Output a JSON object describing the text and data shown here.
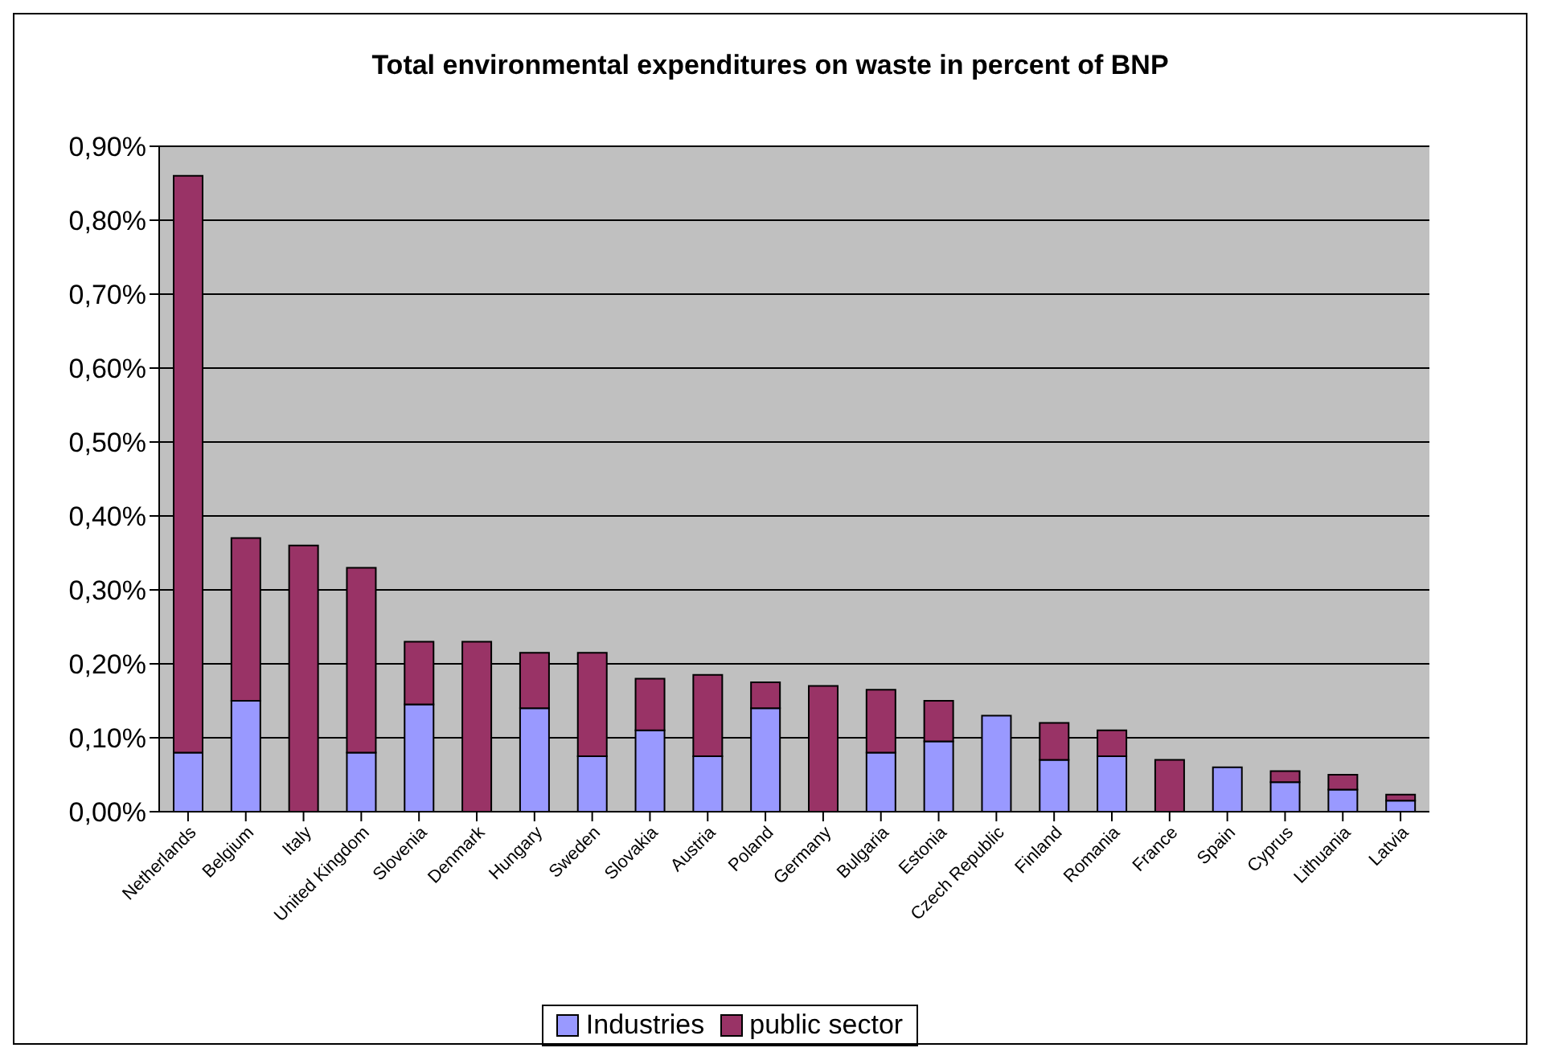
{
  "chart_data": {
    "type": "bar",
    "title": "Total environmental expenditures on waste in percent of BNP",
    "stacked": true,
    "grid": "y",
    "legend": "bottom",
    "categories": [
      "Netherlands",
      "Belgium",
      "Italy",
      "United Kingdom",
      "Slovenia",
      "Denmark",
      "Hungary",
      "Sweden",
      "Slovakia",
      "Austria",
      "Poland",
      "Germany",
      "Bulgaria",
      "Estonia",
      "Czech Republic",
      "Finland",
      "Romania",
      "France",
      "Spain",
      "Cyprus",
      "Lithuania",
      "Latvia"
    ],
    "series": [
      {
        "name": "Industries",
        "color": "#9999ff",
        "values": [
          0.08,
          0.15,
          0,
          0.08,
          0.145,
          0,
          0.14,
          0.075,
          0.11,
          0.075,
          0.14,
          0,
          0.08,
          0.095,
          0.13,
          0.07,
          0.075,
          0,
          0.06,
          0.04,
          0.03,
          0.015
        ]
      },
      {
        "name": "public sector",
        "color": "#993366",
        "values": [
          0.78,
          0.22,
          0.36,
          0.25,
          0.085,
          0.23,
          0.075,
          0.14,
          0.07,
          0.11,
          0.035,
          0.17,
          0.085,
          0.055,
          0,
          0.05,
          0.035,
          0.07,
          0,
          0.015,
          0.02,
          0.008
        ]
      }
    ],
    "ylim": [
      0,
      0.9
    ],
    "yticks": [
      {
        "value": 0,
        "label": "0,00%"
      },
      {
        "value": 0.1,
        "label": "0,10%"
      },
      {
        "value": 0.2,
        "label": "0,20%"
      },
      {
        "value": 0.3,
        "label": "0,30%"
      },
      {
        "value": 0.4,
        "label": "0,40%"
      },
      {
        "value": 0.5,
        "label": "0,50%"
      },
      {
        "value": 0.6,
        "label": "0,60%"
      },
      {
        "value": 0.7,
        "label": "0,70%"
      },
      {
        "value": 0.8,
        "label": "0,80%"
      },
      {
        "value": 0.9,
        "label": "0,90%"
      }
    ]
  }
}
